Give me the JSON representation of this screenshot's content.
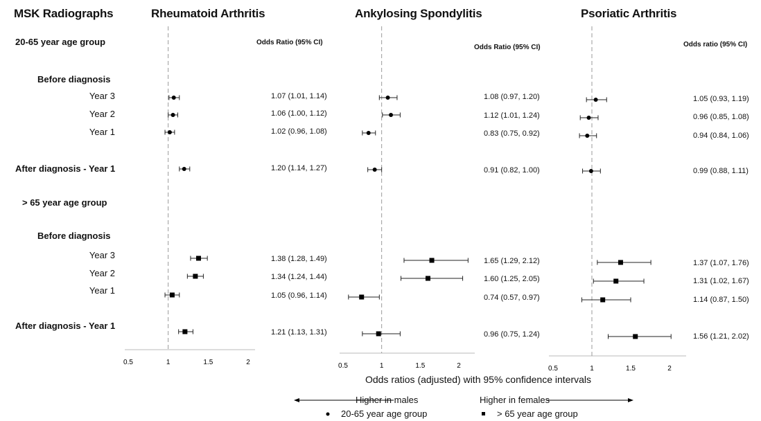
{
  "header": {
    "main_title": "MSK Radiographs"
  },
  "groups": [
    {
      "label": "20-65 year age group"
    },
    {
      "label": "> 65 year age group"
    }
  ],
  "row_labels": {
    "before": "Before diagnosis",
    "year3": "Year 3",
    "year2": "Year 2",
    "year1": "Year 1",
    "after": "After diagnosis - Year 1"
  },
  "x_axis": {
    "title": "Odds ratios (adjusted) with 95% confidence intervals",
    "ticks": [
      "0.5",
      "1",
      "1.5",
      "2"
    ]
  },
  "direction": {
    "left": "Higher in males",
    "right": "Higher in females"
  },
  "legend": {
    "circle": "20-65 year age group",
    "square": "> 65 year age group"
  },
  "chart_data": [
    {
      "type": "forest",
      "title": "Rheumatoid Arthritis",
      "ci_header": "Odds Ratio (95% CI)",
      "xlim": [
        0.5,
        2
      ],
      "reference_line": 1,
      "rows": [
        {
          "group": "20-65",
          "period": "Before diagnosis - Year 3",
          "marker": "circle",
          "or": 1.07,
          "lo": 1.01,
          "hi": 1.14,
          "label": "1.07 (1.01, 1.14)"
        },
        {
          "group": "20-65",
          "period": "Before diagnosis - Year 2",
          "marker": "circle",
          "or": 1.06,
          "lo": 1.0,
          "hi": 1.12,
          "label": "1.06 (1.00, 1.12)"
        },
        {
          "group": "20-65",
          "period": "Before diagnosis - Year 1",
          "marker": "circle",
          "or": 1.02,
          "lo": 0.96,
          "hi": 1.08,
          "label": "1.02 (0.96, 1.08)"
        },
        {
          "group": "20-65",
          "period": "After diagnosis - Year 1",
          "marker": "circle",
          "or": 1.2,
          "lo": 1.14,
          "hi": 1.27,
          "label": "1.20 (1.14, 1.27)"
        },
        {
          "group": ">65",
          "period": "Before diagnosis - Year 3",
          "marker": "square",
          "or": 1.38,
          "lo": 1.28,
          "hi": 1.49,
          "label": "1.38 (1.28, 1.49)"
        },
        {
          "group": ">65",
          "period": "Before diagnosis - Year 2",
          "marker": "square",
          "or": 1.34,
          "lo": 1.24,
          "hi": 1.44,
          "label": "1.34 (1.24, 1.44)"
        },
        {
          "group": ">65",
          "period": "Before diagnosis - Year 1",
          "marker": "square",
          "or": 1.05,
          "lo": 0.96,
          "hi": 1.14,
          "label": "1.05 (0.96, 1.14)"
        },
        {
          "group": ">65",
          "period": "After diagnosis - Year 1",
          "marker": "square",
          "or": 1.21,
          "lo": 1.13,
          "hi": 1.31,
          "label": "1.21 (1.13, 1.31)"
        }
      ]
    },
    {
      "type": "forest",
      "title": "Ankylosing Spondylitis",
      "ci_header": "Odds Ratio (95% CI)",
      "xlim": [
        0.5,
        2
      ],
      "reference_line": 1,
      "rows": [
        {
          "group": "20-65",
          "period": "Before diagnosis - Year 3",
          "marker": "circle",
          "or": 1.08,
          "lo": 0.97,
          "hi": 1.2,
          "label": "1.08 (0.97, 1.20)"
        },
        {
          "group": "20-65",
          "period": "Before diagnosis - Year 2",
          "marker": "circle",
          "or": 1.12,
          "lo": 1.01,
          "hi": 1.24,
          "label": "1.12 (1.01, 1.24)"
        },
        {
          "group": "20-65",
          "period": "Before diagnosis - Year 1",
          "marker": "circle",
          "or": 0.83,
          "lo": 0.75,
          "hi": 0.92,
          "label": "0.83 (0.75, 0.92)"
        },
        {
          "group": "20-65",
          "period": "After diagnosis - Year 1",
          "marker": "circle",
          "or": 0.91,
          "lo": 0.82,
          "hi": 1.0,
          "label": "0.91 (0.82, 1.00)"
        },
        {
          "group": ">65",
          "period": "Before diagnosis - Year 3",
          "marker": "square",
          "or": 1.65,
          "lo": 1.29,
          "hi": 2.12,
          "label": "1.65 (1.29, 2.12)"
        },
        {
          "group": ">65",
          "period": "Before diagnosis - Year 2",
          "marker": "square",
          "or": 1.6,
          "lo": 1.25,
          "hi": 2.05,
          "label": "1.60 (1.25, 2.05)"
        },
        {
          "group": ">65",
          "period": "Before diagnosis - Year 1",
          "marker": "square",
          "or": 0.74,
          "lo": 0.57,
          "hi": 0.97,
          "label": "0.74 (0.57, 0.97)"
        },
        {
          "group": ">65",
          "period": "After diagnosis - Year 1",
          "marker": "square",
          "or": 0.96,
          "lo": 0.75,
          "hi": 1.24,
          "label": "0.96 (0.75, 1.24)"
        }
      ]
    },
    {
      "type": "forest",
      "title": "Psoriatic Arthritis",
      "ci_header": "Odds ratio (95% CI)",
      "xlim": [
        0.5,
        2
      ],
      "reference_line": 1,
      "rows": [
        {
          "group": "20-65",
          "period": "Before diagnosis - Year 3",
          "marker": "circle",
          "or": 1.05,
          "lo": 0.93,
          "hi": 1.19,
          "label": "1.05 (0.93, 1.19)"
        },
        {
          "group": "20-65",
          "period": "Before diagnosis - Year 2",
          "marker": "circle",
          "or": 0.96,
          "lo": 0.85,
          "hi": 1.08,
          "label": "0.96 (0.85, 1.08)"
        },
        {
          "group": "20-65",
          "period": "Before diagnosis - Year 1",
          "marker": "circle",
          "or": 0.94,
          "lo": 0.84,
          "hi": 1.06,
          "label": "0.94 (0.84, 1.06)"
        },
        {
          "group": "20-65",
          "period": "After diagnosis - Year 1",
          "marker": "circle",
          "or": 0.99,
          "lo": 0.88,
          "hi": 1.11,
          "label": "0.99 (0.88, 1.11)"
        },
        {
          "group": ">65",
          "period": "Before diagnosis - Year 3",
          "marker": "square",
          "or": 1.37,
          "lo": 1.07,
          "hi": 1.76,
          "label": "1.37 (1.07, 1.76)"
        },
        {
          "group": ">65",
          "period": "Before diagnosis - Year 2",
          "marker": "square",
          "or": 1.31,
          "lo": 1.02,
          "hi": 1.67,
          "label": "1.31 (1.02, 1.67)"
        },
        {
          "group": ">65",
          "period": "Before diagnosis - Year 1",
          "marker": "square",
          "or": 1.14,
          "lo": 0.87,
          "hi": 1.5,
          "label": "1.14 (0.87, 1.50)"
        },
        {
          "group": ">65",
          "period": "After diagnosis - Year 1",
          "marker": "square",
          "or": 1.56,
          "lo": 1.21,
          "hi": 2.02,
          "label": "1.56 (1.21, 2.02)"
        }
      ]
    }
  ]
}
